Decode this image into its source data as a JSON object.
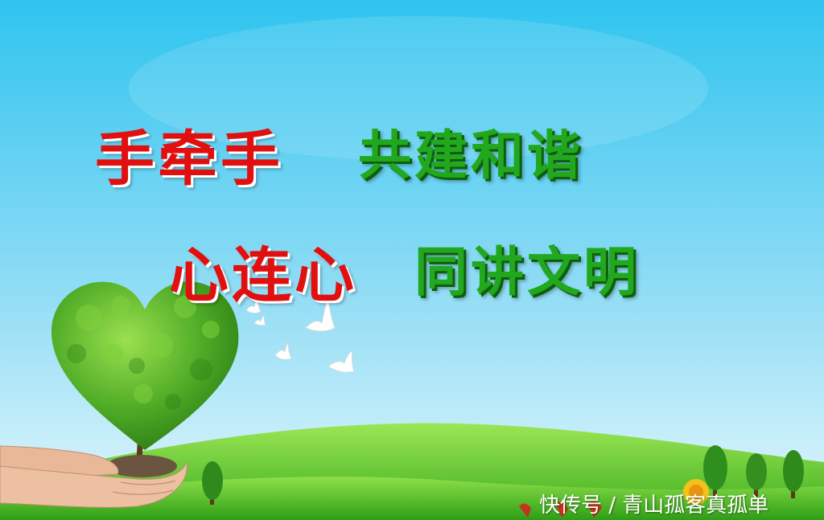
{
  "headline": {
    "line1_red": "手牵手",
    "line1_green": "共建和谐",
    "line2_red": "心连心",
    "line2_green": "同讲文明"
  },
  "watermark": "快传号 / 青山孤客真孤单",
  "colors": {
    "sky_top": "#2ec3ee",
    "sky_bottom": "#d8f3fb",
    "grass": "#3cb81e",
    "red_text": "#e01010",
    "green_text": "#22a81e"
  }
}
